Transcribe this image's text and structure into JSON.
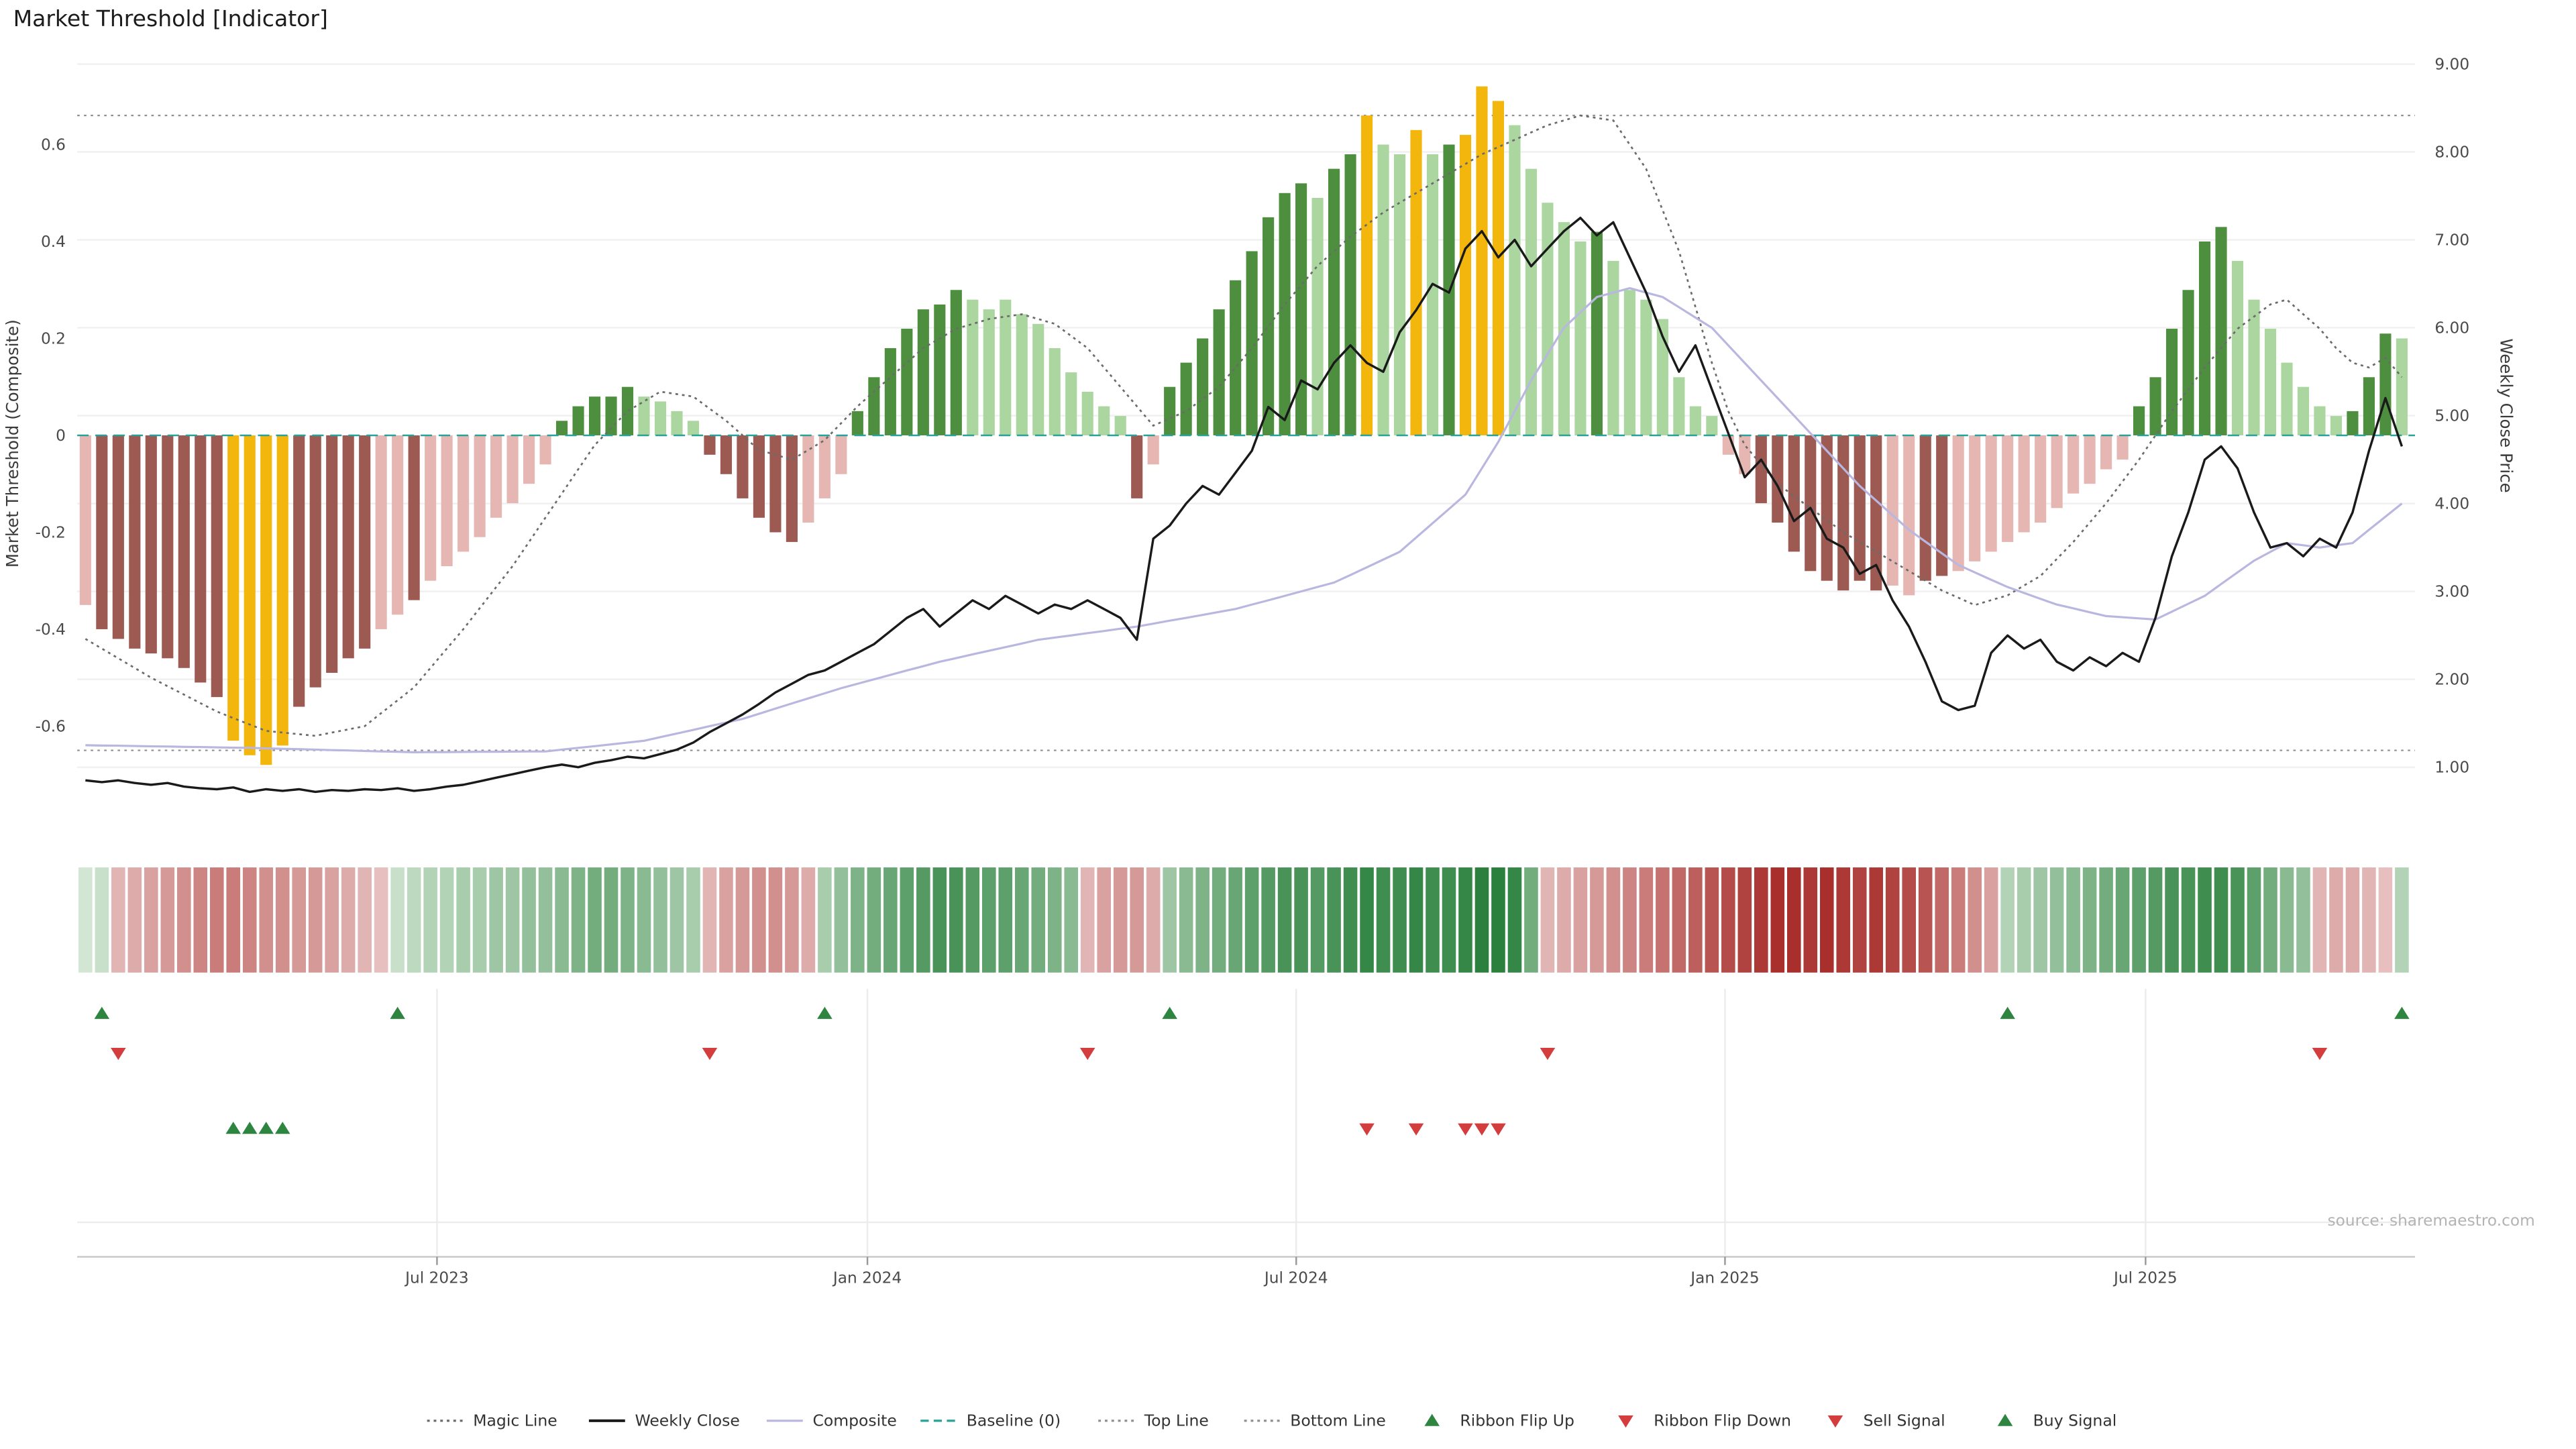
{
  "title": "Market Threshold [Indicator]",
  "source_credit": "source: sharemaestro.com",
  "legend": {
    "position": "bottom-center",
    "items": [
      {
        "label": "Magic Line",
        "marker": "dotted-line",
        "color": "#6b6b6b"
      },
      {
        "label": "Weekly Close",
        "marker": "solid-line",
        "color": "#1a1a1a"
      },
      {
        "label": "Composite",
        "marker": "solid-line",
        "color": "#b9b7e0"
      },
      {
        "label": "Baseline (0)",
        "marker": "dashed-line",
        "color": "#2aa198"
      },
      {
        "label": "Top Line",
        "marker": "dotted-line",
        "color": "#8f8f8f"
      },
      {
        "label": "Bottom Line",
        "marker": "dotted-line",
        "color": "#8f8f8f"
      },
      {
        "label": "Ribbon Flip Up",
        "marker": "up-triangle",
        "color": "#2e8540"
      },
      {
        "label": "Ribbon Flip Down",
        "marker": "down-triangle",
        "color": "#d43d3d"
      },
      {
        "label": "Sell Signal",
        "marker": "down-triangle",
        "color": "#d43d3d"
      },
      {
        "label": "Buy Signal",
        "marker": "up-triangle",
        "color": "#2e8540"
      }
    ]
  },
  "chart_data": {
    "type": "mixed-bar-line",
    "frequency": "weekly",
    "n_points": 142,
    "x_range": [
      "Feb 2023",
      "Oct 2025"
    ],
    "x_ticks": [
      {
        "label": "Jul 2023",
        "index": 21.4
      },
      {
        "label": "Jan 2024",
        "index": 47.6
      },
      {
        "label": "Jul 2024",
        "index": 73.7
      },
      {
        "label": "Jan 2025",
        "index": 99.8
      },
      {
        "label": "Jul 2025",
        "index": 125.4
      }
    ],
    "left_axis": {
      "label": "Market Threshold (Composite)",
      "ticks": [
        0.6,
        0.4,
        0.2,
        0,
        -0.2,
        -0.4,
        -0.6
      ],
      "range": [
        -0.8,
        0.8
      ]
    },
    "right_axis": {
      "label": "Weekly Close Price",
      "ticks": [
        "9.00",
        "8.00",
        "7.00",
        "6.00",
        "5.00",
        "4.00",
        "3.00",
        "2.00",
        "1.00"
      ],
      "range": [
        0.2,
        9.2
      ]
    },
    "top_line": 0.66,
    "bottom_line": -0.65,
    "baseline": 0,
    "series": {
      "market_threshold": {
        "type": "bar",
        "axis": "left",
        "palette": {
          "g": "#4e8f3f",
          "l": "#abd6a0",
          "m": "#9d5a52",
          "p": "#e6b7b2",
          "y": "#f2b60d"
        },
        "values": [
          -0.35,
          -0.4,
          -0.42,
          -0.44,
          -0.45,
          -0.46,
          -0.48,
          -0.51,
          -0.54,
          -0.63,
          -0.66,
          -0.68,
          -0.64,
          -0.56,
          -0.52,
          -0.49,
          -0.46,
          -0.44,
          -0.4,
          -0.37,
          -0.34,
          -0.3,
          -0.27,
          -0.24,
          -0.21,
          -0.17,
          -0.14,
          -0.1,
          -0.06,
          0.03,
          0.06,
          0.08,
          0.08,
          0.1,
          0.08,
          0.07,
          0.05,
          0.03,
          -0.04,
          -0.08,
          -0.13,
          -0.17,
          -0.2,
          -0.22,
          -0.18,
          -0.13,
          -0.08,
          0.05,
          0.12,
          0.18,
          0.22,
          0.26,
          0.27,
          0.3,
          0.28,
          0.26,
          0.28,
          0.25,
          0.23,
          0.18,
          0.13,
          0.09,
          0.06,
          0.04,
          -0.13,
          -0.06,
          0.1,
          0.15,
          0.2,
          0.26,
          0.32,
          0.38,
          0.45,
          0.5,
          0.52,
          0.49,
          0.55,
          0.58,
          0.66,
          0.6,
          0.58,
          0.63,
          0.58,
          0.6,
          0.62,
          0.72,
          0.69,
          0.64,
          0.55,
          0.48,
          0.44,
          0.4,
          0.42,
          0.36,
          0.3,
          0.28,
          0.24,
          0.12,
          0.06,
          0.04,
          -0.04,
          -0.08,
          -0.14,
          -0.18,
          -0.24,
          -0.28,
          -0.3,
          -0.32,
          -0.3,
          -0.32,
          -0.31,
          -0.33,
          -0.3,
          -0.29,
          -0.28,
          -0.26,
          -0.24,
          -0.22,
          -0.2,
          -0.18,
          -0.15,
          -0.12,
          -0.1,
          -0.07,
          -0.05,
          0.06,
          0.12,
          0.22,
          0.3,
          0.4,
          0.43,
          0.36,
          0.28,
          0.22,
          0.15,
          0.1,
          0.06,
          0.04,
          0.05,
          0.12,
          0.21,
          0.2
        ],
        "color_runs": [
          [
            "p",
            1
          ],
          [
            "m",
            8
          ],
          [
            "y",
            4
          ],
          [
            "m",
            5
          ],
          [
            "p",
            2
          ],
          [
            "m",
            1
          ],
          [
            "p",
            8
          ],
          [
            "g",
            5
          ],
          [
            "l",
            4
          ],
          [
            "m",
            6
          ],
          [
            "p",
            3
          ],
          [
            "g",
            7
          ],
          [
            "l",
            10
          ],
          [
            "m",
            1
          ],
          [
            "p",
            1
          ],
          [
            "g",
            9
          ],
          [
            "l",
            1
          ],
          [
            "g",
            2
          ],
          [
            "y",
            1
          ],
          [
            "l",
            2
          ],
          [
            "y",
            1
          ],
          [
            "l",
            1
          ],
          [
            "g",
            1
          ],
          [
            "y",
            3
          ],
          [
            "l",
            5
          ],
          [
            "g",
            1
          ],
          [
            "l",
            7
          ],
          [
            "p",
            2
          ],
          [
            "m",
            8
          ],
          [
            "p",
            2
          ],
          [
            "m",
            2
          ],
          [
            "p",
            11
          ],
          [
            "g",
            6
          ],
          [
            "l",
            7
          ],
          [
            "g",
            3
          ],
          [
            "l",
            1
          ]
        ]
      },
      "weekly_close": {
        "type": "line",
        "axis": "right",
        "color": "#1a1a1a",
        "values": [
          0.85,
          0.83,
          0.85,
          0.82,
          0.8,
          0.82,
          0.78,
          0.76,
          0.75,
          0.77,
          0.72,
          0.75,
          0.73,
          0.75,
          0.72,
          0.74,
          0.73,
          0.75,
          0.74,
          0.76,
          0.73,
          0.75,
          0.78,
          0.8,
          0.84,
          0.88,
          0.92,
          0.96,
          1.0,
          1.03,
          1.0,
          1.05,
          1.08,
          1.12,
          1.1,
          1.15,
          1.2,
          1.28,
          1.4,
          1.5,
          1.6,
          1.72,
          1.85,
          1.95,
          2.05,
          2.1,
          2.2,
          2.3,
          2.4,
          2.55,
          2.7,
          2.8,
          2.6,
          2.75,
          2.9,
          2.8,
          2.95,
          2.85,
          2.75,
          2.85,
          2.8,
          2.9,
          2.8,
          2.7,
          2.45,
          3.6,
          3.75,
          4.0,
          4.2,
          4.1,
          4.35,
          4.6,
          5.1,
          4.95,
          5.4,
          5.3,
          5.6,
          5.8,
          5.6,
          5.5,
          5.95,
          6.2,
          6.5,
          6.4,
          6.9,
          7.1,
          6.8,
          7.0,
          6.7,
          6.9,
          7.1,
          7.25,
          7.05,
          7.2,
          6.8,
          6.4,
          5.9,
          5.5,
          5.8,
          5.3,
          4.8,
          4.3,
          4.5,
          4.2,
          3.8,
          3.95,
          3.6,
          3.5,
          3.2,
          3.3,
          2.9,
          2.6,
          2.2,
          1.75,
          1.65,
          1.7,
          2.3,
          2.5,
          2.35,
          2.45,
          2.2,
          2.1,
          2.25,
          2.15,
          2.3,
          2.2,
          2.7,
          3.4,
          3.9,
          4.5,
          4.65,
          4.4,
          3.9,
          3.5,
          3.55,
          3.4,
          3.6,
          3.5,
          3.9,
          4.6,
          5.2,
          4.65
        ]
      },
      "composite": {
        "type": "line",
        "axis": "right",
        "color": "#b9b7e0",
        "keypoints": [
          [
            0,
            1.25
          ],
          [
            10,
            1.22
          ],
          [
            20,
            1.17
          ],
          [
            28,
            1.18
          ],
          [
            34,
            1.3
          ],
          [
            40,
            1.55
          ],
          [
            46,
            1.9
          ],
          [
            52,
            2.2
          ],
          [
            58,
            2.45
          ],
          [
            64,
            2.6
          ],
          [
            70,
            2.8
          ],
          [
            76,
            3.1
          ],
          [
            80,
            3.45
          ],
          [
            84,
            4.1
          ],
          [
            86,
            4.7
          ],
          [
            88,
            5.4
          ],
          [
            90,
            6.0
          ],
          [
            92,
            6.35
          ],
          [
            94,
            6.45
          ],
          [
            96,
            6.35
          ],
          [
            99,
            6.0
          ],
          [
            102,
            5.4
          ],
          [
            105,
            4.8
          ],
          [
            108,
            4.2
          ],
          [
            111,
            3.7
          ],
          [
            114,
            3.3
          ],
          [
            117,
            3.05
          ],
          [
            120,
            2.85
          ],
          [
            123,
            2.72
          ],
          [
            126,
            2.68
          ],
          [
            129,
            2.95
          ],
          [
            132,
            3.35
          ],
          [
            134,
            3.55
          ],
          [
            136,
            3.5
          ],
          [
            138,
            3.55
          ],
          [
            140,
            3.85
          ],
          [
            141,
            4.0
          ]
        ]
      },
      "magic_line": {
        "type": "line",
        "axis": "left",
        "style": "dotted",
        "color": "#6b6b6b",
        "keypoints": [
          [
            0,
            -0.42
          ],
          [
            4,
            -0.5
          ],
          [
            8,
            -0.57
          ],
          [
            11,
            -0.61
          ],
          [
            14,
            -0.62
          ],
          [
            17,
            -0.6
          ],
          [
            20,
            -0.52
          ],
          [
            23,
            -0.4
          ],
          [
            26,
            -0.27
          ],
          [
            29,
            -0.12
          ],
          [
            31,
            -0.02
          ],
          [
            33,
            0.05
          ],
          [
            35,
            0.09
          ],
          [
            37,
            0.08
          ],
          [
            39,
            0.03
          ],
          [
            41,
            -0.03
          ],
          [
            43,
            -0.05
          ],
          [
            45,
            -0.01
          ],
          [
            47,
            0.06
          ],
          [
            49,
            0.12
          ],
          [
            51,
            0.18
          ],
          [
            53,
            0.22
          ],
          [
            55,
            0.24
          ],
          [
            57,
            0.25
          ],
          [
            59,
            0.23
          ],
          [
            61,
            0.18
          ],
          [
            63,
            0.1
          ],
          [
            65,
            0.02
          ],
          [
            67,
            0.05
          ],
          [
            69,
            0.1
          ],
          [
            71,
            0.18
          ],
          [
            73,
            0.27
          ],
          [
            75,
            0.35
          ],
          [
            77,
            0.41
          ],
          [
            79,
            0.46
          ],
          [
            81,
            0.5
          ],
          [
            83,
            0.54
          ],
          [
            85,
            0.58
          ],
          [
            87,
            0.61
          ],
          [
            89,
            0.64
          ],
          [
            91,
            0.66
          ],
          [
            93,
            0.65
          ],
          [
            94,
            0.6
          ],
          [
            95,
            0.55
          ],
          [
            97,
            0.38
          ],
          [
            99,
            0.15
          ],
          [
            100,
            0.05
          ],
          [
            101,
            -0.02
          ],
          [
            103,
            -0.1
          ],
          [
            105,
            -0.15
          ],
          [
            107,
            -0.2
          ],
          [
            109,
            -0.24
          ],
          [
            111,
            -0.28
          ],
          [
            113,
            -0.32
          ],
          [
            115,
            -0.35
          ],
          [
            117,
            -0.33
          ],
          [
            119,
            -0.29
          ],
          [
            121,
            -0.22
          ],
          [
            123,
            -0.14
          ],
          [
            125,
            -0.05
          ],
          [
            127,
            0.05
          ],
          [
            129,
            0.14
          ],
          [
            131,
            0.22
          ],
          [
            133,
            0.27
          ],
          [
            134,
            0.28
          ],
          [
            136,
            0.22
          ],
          [
            137,
            0.18
          ],
          [
            138,
            0.15
          ],
          [
            139,
            0.14
          ],
          [
            140,
            0.16
          ],
          [
            141,
            0.12
          ]
        ]
      }
    },
    "ribbon": {
      "colors": {
        "positive_light": "#f2f9ef",
        "positive_dark": "#1f7a33",
        "negative_light": "#faefee",
        "negative_dark": "#a82f2c"
      },
      "values": [
        0.15,
        0.2,
        -0.3,
        -0.35,
        -0.4,
        -0.45,
        -0.5,
        -0.55,
        -0.6,
        -0.6,
        -0.55,
        -0.5,
        -0.5,
        -0.45,
        -0.45,
        -0.4,
        -0.35,
        -0.3,
        -0.25,
        0.2,
        0.25,
        0.3,
        0.3,
        0.35,
        0.35,
        0.4,
        0.4,
        0.45,
        0.45,
        0.5,
        0.55,
        0.6,
        0.6,
        0.55,
        0.5,
        0.45,
        0.4,
        0.35,
        -0.3,
        -0.4,
        -0.45,
        -0.5,
        -0.5,
        -0.45,
        -0.35,
        0.35,
        0.45,
        0.55,
        0.6,
        0.65,
        0.7,
        0.75,
        0.8,
        0.8,
        0.75,
        0.7,
        0.7,
        0.65,
        0.6,
        0.55,
        0.5,
        -0.3,
        -0.4,
        -0.45,
        -0.45,
        -0.35,
        0.4,
        0.5,
        0.55,
        0.6,
        0.65,
        0.7,
        0.75,
        0.8,
        0.8,
        0.75,
        0.8,
        0.85,
        0.9,
        0.85,
        0.85,
        0.9,
        0.85,
        0.85,
        0.9,
        0.95,
        0.95,
        0.9,
        0.6,
        -0.3,
        -0.35,
        -0.4,
        -0.45,
        -0.5,
        -0.55,
        -0.6,
        -0.65,
        -0.7,
        -0.75,
        -0.8,
        -0.85,
        -0.9,
        -0.95,
        -1.0,
        -1.0,
        -0.95,
        -1.0,
        -0.95,
        -0.9,
        -0.95,
        -0.9,
        -0.85,
        -0.8,
        -0.7,
        -0.6,
        -0.5,
        -0.4,
        0.3,
        0.35,
        0.4,
        0.45,
        0.5,
        0.55,
        0.6,
        0.65,
        0.7,
        0.75,
        0.8,
        0.8,
        0.85,
        0.85,
        0.8,
        0.7,
        0.6,
        0.5,
        0.45,
        -0.3,
        -0.35,
        -0.35,
        -0.3,
        -0.25,
        0.3
      ]
    },
    "signals": {
      "ribbon_flip_up": {
        "marker": "up-triangle",
        "color": "#2e8540",
        "indices": [
          1,
          19,
          45,
          66,
          117,
          141
        ]
      },
      "ribbon_flip_down": {
        "marker": "down-triangle",
        "color": "#d43d3d",
        "indices": [
          2,
          38,
          61,
          89,
          136
        ]
      },
      "buy": {
        "marker": "up-triangle",
        "color": "#2e8540",
        "indices": [
          9,
          10,
          11,
          12
        ]
      },
      "sell": {
        "marker": "down-triangle",
        "color": "#d43d3d",
        "indices": [
          78,
          81,
          84,
          85,
          86
        ]
      }
    }
  }
}
